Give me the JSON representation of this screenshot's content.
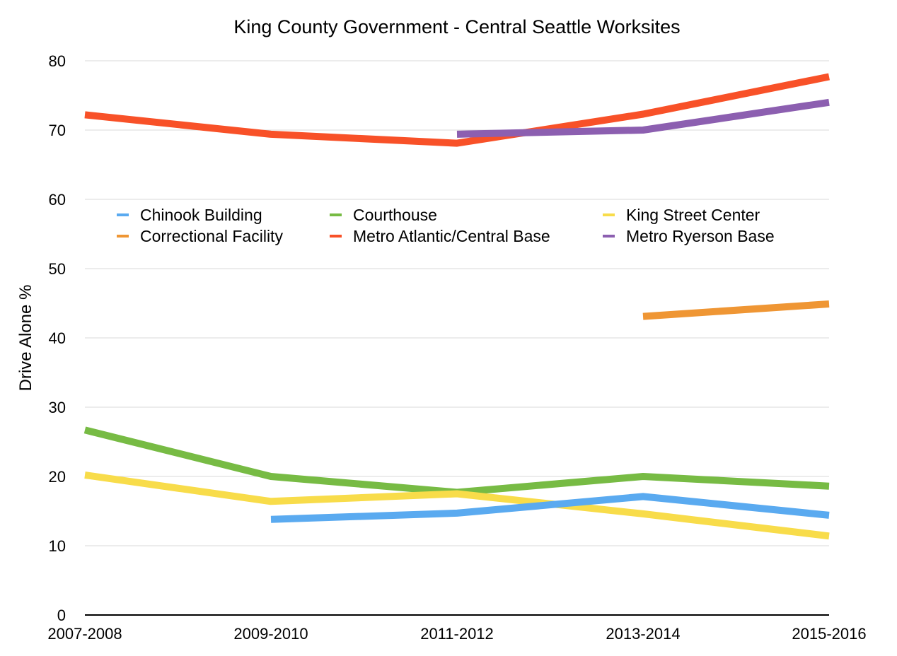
{
  "chart_data": {
    "type": "line",
    "title": "King County Government - Central Seattle Worksites",
    "xlabel": "",
    "ylabel": "Drive Alone %",
    "categories": [
      "2007-2008",
      "2009-2010",
      "2011-2012",
      "2013-2014",
      "2015-2016"
    ],
    "ylim": [
      0,
      80
    ],
    "yticks": [
      0,
      10,
      20,
      30,
      40,
      50,
      60,
      70,
      80
    ],
    "grid": true,
    "legend_position": "upper-middle",
    "series": [
      {
        "name": "Chinook Building",
        "color": "#5aaaf0",
        "values": [
          null,
          13.8,
          14.7,
          17.1,
          14.4
        ]
      },
      {
        "name": "Courthouse",
        "color": "#77bb44",
        "values": [
          26.7,
          20.0,
          17.7,
          20.0,
          18.6
        ]
      },
      {
        "name": "King Street Center",
        "color": "#f8dc4a",
        "values": [
          20.2,
          16.4,
          17.5,
          14.6,
          11.4
        ]
      },
      {
        "name": "Correctional Facility",
        "color": "#ef9634",
        "values": [
          null,
          null,
          null,
          43.1,
          44.9
        ]
      },
      {
        "name": "Metro Atlantic/Central Base",
        "color": "#f85128",
        "values": [
          72.2,
          69.4,
          68.1,
          72.3,
          77.7
        ]
      },
      {
        "name": "Metro Ryerson Base",
        "color": "#8c5fb0",
        "values": [
          null,
          null,
          69.4,
          70.0,
          74.0
        ]
      }
    ]
  }
}
